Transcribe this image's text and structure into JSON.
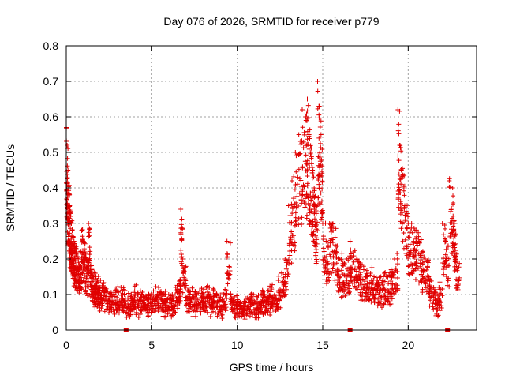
{
  "chart_data": {
    "type": "scatter",
    "title": "Day 076 of 2026, SRMTID for receiver p779",
    "xlabel": "GPS time / hours",
    "ylabel": "SRMTID / TECUs",
    "xlim": [
      0,
      24
    ],
    "ylim": [
      0,
      0.8
    ],
    "xticks": [
      0,
      5,
      10,
      15,
      20
    ],
    "xtick_labels": [
      "0",
      "5",
      "10",
      "15",
      "20"
    ],
    "yticks": [
      0,
      0.1,
      0.2,
      0.3,
      0.4,
      0.5,
      0.6,
      0.7,
      0.8
    ],
    "ytick_labels": [
      "0",
      "0.1",
      "0.2",
      "0.3",
      "0.4",
      "0.5",
      "0.6",
      "0.7",
      "0.8"
    ],
    "grid": true,
    "marker": "plus",
    "color": "#e00000",
    "series": [
      {
        "name": "SRMTID",
        "x": [
          0.0,
          0.05,
          0.1,
          0.15,
          0.2,
          0.25,
          0.3,
          0.35,
          0.4,
          0.45,
          0.5,
          0.6,
          0.7,
          0.8,
          0.9,
          1.0,
          1.1,
          1.2,
          1.3,
          1.4,
          1.5,
          1.6,
          1.7,
          1.8,
          1.9,
          2.0,
          2.2,
          2.4,
          2.6,
          2.8,
          3.0,
          3.2,
          3.4,
          3.6,
          3.8,
          4.0,
          4.2,
          4.4,
          4.6,
          4.8,
          5.0,
          5.2,
          5.4,
          5.6,
          5.8,
          6.0,
          6.2,
          6.4,
          6.6,
          6.7,
          6.8,
          7.0,
          7.2,
          7.4,
          7.6,
          7.8,
          8.0,
          8.2,
          8.4,
          8.6,
          8.8,
          9.0,
          9.2,
          9.4,
          9.6,
          9.8,
          10.0,
          10.2,
          10.4,
          10.6,
          10.8,
          11.0,
          11.2,
          11.4,
          11.6,
          11.8,
          12.0,
          12.2,
          12.4,
          12.6,
          12.8,
          13.0,
          13.2,
          13.4,
          13.6,
          13.8,
          14.0,
          14.1,
          14.2,
          14.3,
          14.4,
          14.5,
          14.6,
          14.7,
          14.8,
          14.9,
          15.0,
          15.2,
          15.4,
          15.6,
          15.8,
          16.0,
          16.2,
          16.4,
          16.6,
          16.8,
          17.0,
          17.2,
          17.4,
          17.6,
          17.8,
          18.0,
          18.2,
          18.4,
          18.6,
          18.8,
          19.0,
          19.2,
          19.4,
          19.5,
          19.6,
          19.8,
          20.0,
          20.2,
          20.4,
          20.6,
          20.8,
          21.0,
          21.2,
          21.4,
          21.6,
          21.8,
          22.0,
          22.2,
          22.4,
          22.6,
          22.7,
          22.8
        ],
        "y": [
          0.57,
          0.52,
          0.45,
          0.4,
          0.35,
          0.32,
          0.3,
          0.28,
          0.26,
          0.25,
          0.24,
          0.22,
          0.2,
          0.22,
          0.28,
          0.25,
          0.22,
          0.2,
          0.3,
          0.18,
          0.17,
          0.15,
          0.16,
          0.14,
          0.12,
          0.14,
          0.12,
          0.11,
          0.1,
          0.1,
          0.11,
          0.12,
          0.1,
          0.09,
          0.1,
          0.11,
          0.1,
          0.1,
          0.09,
          0.1,
          0.1,
          0.11,
          0.12,
          0.1,
          0.1,
          0.09,
          0.1,
          0.12,
          0.13,
          0.34,
          0.2,
          0.12,
          0.11,
          0.1,
          0.1,
          0.11,
          0.1,
          0.12,
          0.1,
          0.11,
          0.1,
          0.09,
          0.1,
          0.25,
          0.1,
          0.09,
          0.08,
          0.07,
          0.08,
          0.09,
          0.1,
          0.08,
          0.09,
          0.1,
          0.1,
          0.11,
          0.12,
          0.1,
          0.14,
          0.16,
          0.2,
          0.35,
          0.42,
          0.5,
          0.55,
          0.62,
          0.6,
          0.65,
          0.55,
          0.5,
          0.45,
          0.4,
          0.35,
          0.7,
          0.63,
          0.55,
          0.3,
          0.25,
          0.3,
          0.28,
          0.22,
          0.2,
          0.18,
          0.2,
          0.25,
          0.22,
          0.2,
          0.18,
          0.17,
          0.15,
          0.16,
          0.15,
          0.14,
          0.15,
          0.16,
          0.15,
          0.17,
          0.2,
          0.62,
          0.52,
          0.45,
          0.35,
          0.3,
          0.3,
          0.28,
          0.25,
          0.22,
          0.2,
          0.15,
          0.12,
          0.1,
          0.12,
          0.3,
          0.25,
          0.42,
          0.4,
          0.3,
          0.2
        ]
      }
    ],
    "outliers_zero": [
      3.5,
      16.6,
      22.3
    ]
  }
}
